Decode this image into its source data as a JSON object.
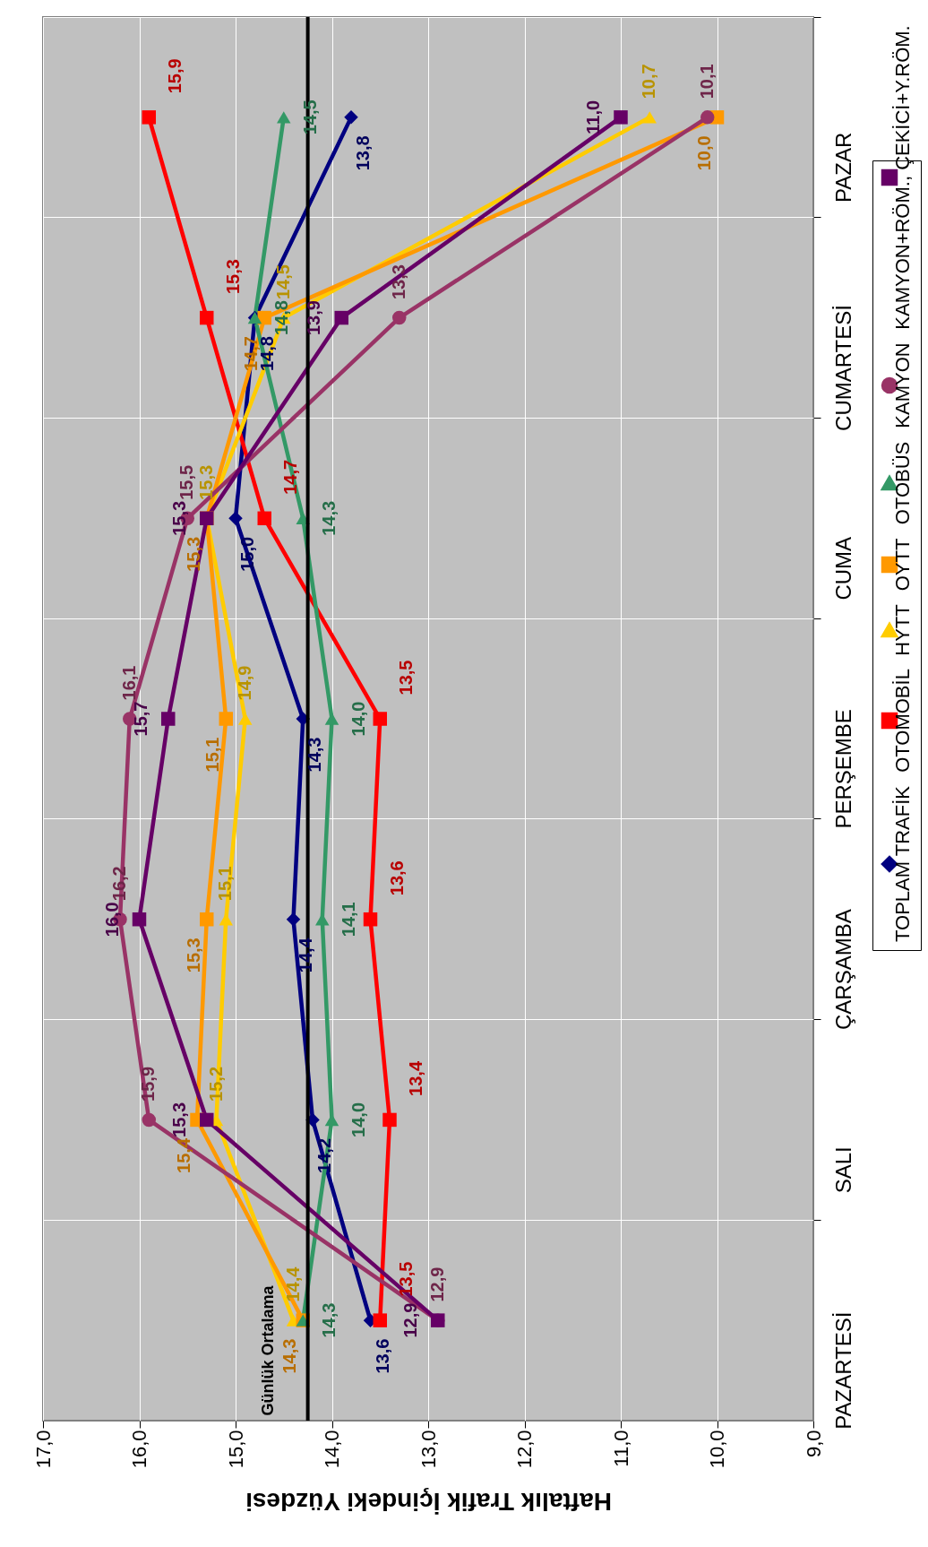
{
  "chart_data": {
    "type": "line",
    "orientation": "horizontal",
    "xlabel": "Haftalık Trafik İçindeki Yüzdesi",
    "categories": [
      "PAZAR",
      "CUMARTESİ",
      "CUMA",
      "PERŞEMBE",
      "ÇARŞAMBA",
      "SALI",
      "PAZARTESİ"
    ],
    "series": [
      {
        "name": "TOPLAM TRAFİK",
        "color": "#000080",
        "marker": "diamond",
        "values": [
          13.8,
          14.8,
          15.0,
          14.3,
          14.4,
          14.2,
          13.6
        ],
        "value_labels": [
          "13,8",
          "14,8",
          "15,0",
          "14,3",
          "14,4",
          "14,2",
          "13,6"
        ]
      },
      {
        "name": "OTOMOBİL",
        "color": "#ff0000",
        "marker": "square",
        "values": [
          15.9,
          15.3,
          14.7,
          13.5,
          13.6,
          13.4,
          13.5
        ],
        "value_labels": [
          "15,9",
          "15,3",
          "14,7",
          "13,5",
          "13,6",
          "13,4",
          "13,5"
        ]
      },
      {
        "name": "HYTT",
        "color": "#ffcc00",
        "marker": "triangle",
        "values": [
          10.7,
          14.5,
          15.3,
          14.9,
          15.1,
          15.2,
          14.4
        ],
        "value_labels": [
          "10,7",
          "14,5",
          "15,3",
          "14,9",
          "15,1",
          "15,2",
          "14,4"
        ]
      },
      {
        "name": "OYTT",
        "color": "#ff9900",
        "marker": "square",
        "values": [
          10.0,
          14.7,
          15.3,
          15.1,
          15.3,
          15.4,
          14.3
        ],
        "value_labels": [
          "10,0",
          "14,7",
          "15,3",
          "15,1",
          "15,3",
          "15,4",
          "14,3"
        ]
      },
      {
        "name": "OTOBÜS",
        "color": "#339966",
        "marker": "triangle",
        "values": [
          14.5,
          14.8,
          14.3,
          14.0,
          14.1,
          14.0,
          14.3
        ],
        "value_labels": [
          "14,5",
          "14,8",
          "14,3",
          "14,0",
          "14,1",
          "14,0",
          "14,3"
        ]
      },
      {
        "name": "KAMYON",
        "color": "#993366",
        "marker": "circle",
        "values": [
          10.1,
          13.3,
          15.5,
          16.1,
          16.2,
          15.9,
          12.9
        ],
        "value_labels": [
          "10,1",
          "13,3",
          "15,5",
          "16,1",
          "16,2",
          "15,9",
          "12,9"
        ]
      },
      {
        "name": "KAMYON+RÖM., ÇEKİCİ+Y.RÖM.",
        "color": "#660066",
        "marker": "square",
        "values": [
          11.0,
          13.9,
          15.3,
          15.7,
          16.0,
          15.3,
          12.9
        ],
        "value_labels": [
          "11,0",
          "13,9",
          "15,3",
          "15,7",
          "16,0",
          "15,3",
          "12,9"
        ]
      }
    ],
    "xlim": [
      17,
      9
    ],
    "xticks": [
      {
        "value": 17,
        "label": "17,0"
      },
      {
        "value": 16,
        "label": "16,0"
      },
      {
        "value": 15,
        "label": "15,0"
      },
      {
        "value": 14,
        "label": "14,0"
      },
      {
        "value": 13,
        "label": "13,0"
      },
      {
        "value": 12,
        "label": "12,0"
      },
      {
        "value": 11,
        "label": "11,0"
      },
      {
        "value": 10,
        "label": "10,0"
      },
      {
        "value": 9,
        "label": "9,0"
      }
    ],
    "ref_lines": [
      {
        "axis": "x",
        "value": 14.25,
        "label": "Günlük Ortalama",
        "color": "#000000"
      }
    ],
    "grid": true,
    "legend": "right",
    "line_style": "solid"
  }
}
